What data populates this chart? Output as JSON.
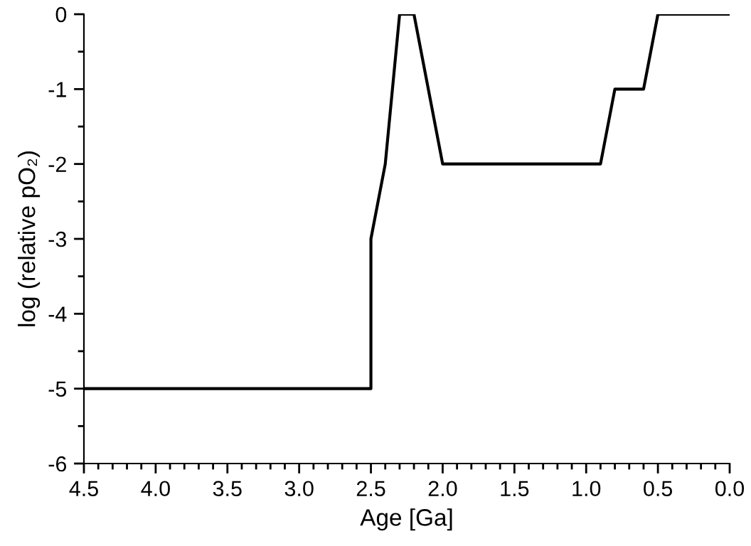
{
  "chart_data": {
    "type": "line",
    "xlabel": "Age [Ga]",
    "ylabel": "log (relative pO₂)",
    "x": [
      4.5,
      2.5,
      2.5,
      2.4,
      2.3,
      2.2,
      2.0,
      0.9,
      0.8,
      0.6,
      0.5,
      0.0
    ],
    "series": [
      {
        "color": "#000000",
        "values": [
          -5,
          -5,
          -3,
          -2,
          0,
          0,
          -2,
          -2,
          -1,
          -1,
          0,
          0
        ]
      }
    ],
    "xlim": [
      4.5,
      0.0
    ],
    "ylim": [
      -6,
      0
    ],
    "xticks": [
      {
        "value": 4.5,
        "label": "4.5"
      },
      {
        "value": 4.0,
        "label": "4.0"
      },
      {
        "value": 3.5,
        "label": "3.5"
      },
      {
        "value": 3.0,
        "label": "3.0"
      },
      {
        "value": 2.5,
        "label": "2.5"
      },
      {
        "value": 2.0,
        "label": "2.0"
      },
      {
        "value": 1.5,
        "label": "1.5"
      },
      {
        "value": 1.0,
        "label": "1.0"
      },
      {
        "value": 0.5,
        "label": "0.5"
      },
      {
        "value": 0.0,
        "label": "0.0"
      }
    ],
    "yticks": [
      -6,
      -5,
      -4,
      -3,
      -2,
      -1,
      0
    ],
    "grid": false,
    "legend": false,
    "marker": "none",
    "line_style": "solid"
  }
}
